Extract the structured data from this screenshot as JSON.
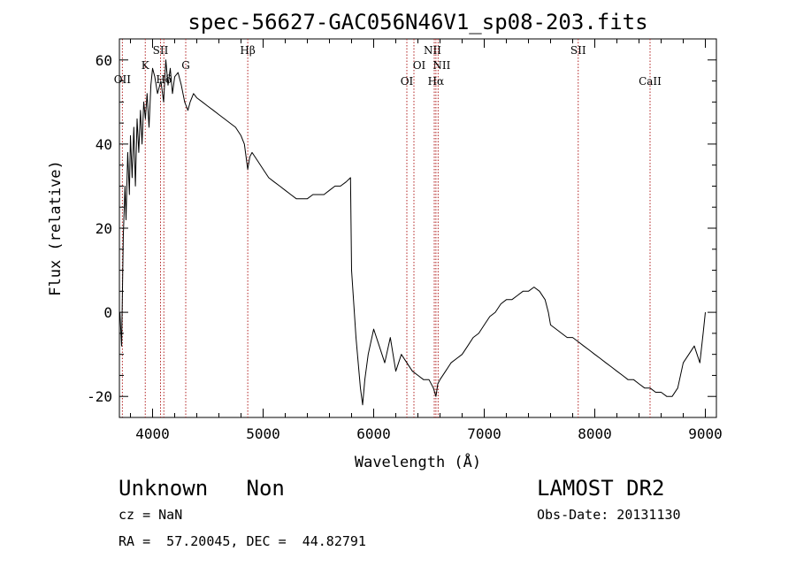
{
  "chart_data": {
    "type": "line",
    "title": "spec-56627-GAC056N46V1_sp08-203.fits",
    "xlabel": "Wavelength (Å)",
    "ylabel": "Flux (relative)",
    "xlim": [
      3700,
      9100
    ],
    "ylim": [
      -25,
      65
    ],
    "x_ticks": [
      4000,
      5000,
      6000,
      7000,
      8000,
      9000
    ],
    "y_ticks": [
      -20,
      0,
      20,
      40,
      60
    ],
    "grid": false,
    "line_color": "#000000",
    "marker_color": "#b22222",
    "series": [
      {
        "x": [
          3705,
          3720,
          3735,
          3750,
          3760,
          3775,
          3790,
          3800,
          3815,
          3830,
          3845,
          3860,
          3875,
          3890,
          3905,
          3920,
          3935,
          3950,
          3968,
          3985,
          4000,
          4020,
          4045,
          4075,
          4100,
          4120,
          4140,
          4160,
          4180,
          4200,
          4230,
          4260,
          4290,
          4320,
          4340,
          4370,
          4400,
          4450,
          4500,
          4550,
          4600,
          4650,
          4700,
          4750,
          4800,
          4830,
          4861,
          4880,
          4900,
          4950,
          5000,
          5050,
          5100,
          5150,
          5200,
          5250,
          5300,
          5350,
          5400,
          5450,
          5500,
          5550,
          5600,
          5650,
          5700,
          5750,
          5790,
          5800,
          5820,
          5840,
          5860,
          5880,
          5900,
          5920,
          5950,
          6000,
          6050,
          6100,
          6150,
          6200,
          6250,
          6300,
          6350,
          6400,
          6450,
          6500,
          6540,
          6563,
          6580,
          6600,
          6650,
          6700,
          6750,
          6800,
          6850,
          6900,
          6950,
          7000,
          7050,
          7100,
          7150,
          7200,
          7250,
          7300,
          7350,
          7400,
          7450,
          7500,
          7550,
          7580,
          7600,
          7650,
          7700,
          7750,
          7800,
          7850,
          7900,
          7950,
          8000,
          8050,
          8100,
          8150,
          8200,
          8250,
          8300,
          8350,
          8400,
          8450,
          8500,
          8550,
          8600,
          8650,
          8700,
          8750,
          8800,
          8850,
          8900,
          8950,
          8980,
          9000
        ],
        "y": [
          0,
          -8,
          18,
          30,
          22,
          38,
          28,
          42,
          32,
          44,
          30,
          46,
          38,
          48,
          40,
          50,
          46,
          52,
          44,
          54,
          58,
          56,
          52,
          55,
          50,
          60,
          54,
          58,
          52,
          56,
          57,
          54,
          50,
          48,
          50,
          52,
          51,
          50,
          49,
          48,
          47,
          46,
          45,
          44,
          42,
          40,
          34,
          37,
          38,
          36,
          34,
          32,
          31,
          30,
          29,
          28,
          27,
          27,
          27,
          28,
          28,
          28,
          29,
          30,
          30,
          31,
          32,
          10,
          2,
          -6,
          -12,
          -18,
          -22,
          -16,
          -10,
          -4,
          -8,
          -12,
          -6,
          -14,
          -10,
          -12,
          -14,
          -15,
          -16,
          -16,
          -18,
          -20,
          -17,
          -16,
          -14,
          -12,
          -11,
          -10,
          -8,
          -6,
          -5,
          -3,
          -1,
          0,
          2,
          3,
          3,
          4,
          5,
          5,
          6,
          5,
          3,
          0,
          -3,
          -4,
          -5,
          -6,
          -6,
          -7,
          -8,
          -9,
          -10,
          -11,
          -12,
          -13,
          -14,
          -15,
          -16,
          -16,
          -17,
          -18,
          -18,
          -19,
          -19,
          -20,
          -20,
          -18,
          -12,
          -10,
          -8,
          -12,
          -5,
          0
        ]
      }
    ],
    "lines": [
      {
        "label": "OII",
        "x": 3727
      },
      {
        "label": "K",
        "x": 3934
      },
      {
        "label": "SII",
        "x": 4072
      },
      {
        "label": "Hδ",
        "x": 4102
      },
      {
        "label": "G",
        "x": 4300
      },
      {
        "label": "Hβ",
        "x": 4861
      },
      {
        "label": "OI",
        "x": 6300
      },
      {
        "label": "OI",
        "x": 6364
      },
      {
        "label": "NII",
        "x": 6548
      },
      {
        "label": "Hα",
        "x": 6563
      },
      {
        "label": "NII",
        "x": 6583
      },
      {
        "label": "SII",
        "x": 7850
      },
      {
        "label": "CaII",
        "x": 8500
      }
    ]
  },
  "footer": {
    "class_label": "Unknown   Non",
    "cz_line": "cz = NaN",
    "coord_line": "RA =  57.20045, DEC =  44.82791",
    "survey": "LAMOST DR2",
    "obs_date": "Obs-Date: 20131130"
  }
}
